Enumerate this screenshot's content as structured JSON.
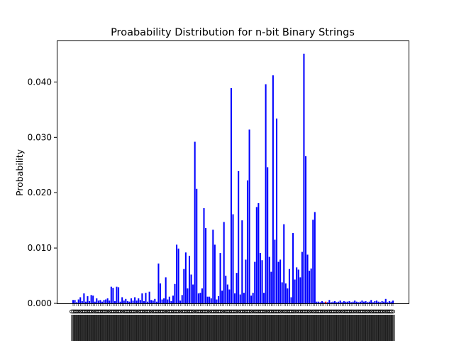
{
  "chart_data": {
    "type": "bar",
    "title": "Proabability Distribution for n-bit Binary Strings",
    "xlabel": "",
    "ylabel": "Probability",
    "ylim": [
      0,
      0.0475
    ],
    "yticks": [
      0.0,
      0.01,
      0.02,
      0.03,
      0.04
    ],
    "ytick_labels": [
      "0.000",
      "0.010",
      "0.020",
      "0.030",
      "0.040"
    ],
    "grid": false,
    "bar_color": "#0000ff",
    "highlight_color": "#ff0000",
    "highlight_index": 139,
    "xtick_labels_note": "x tick labels are densely overlapping rotated binary strings starting with 0",
    "values": [
      0.0006,
      0.0006,
      0.0002,
      0.0007,
      0.0011,
      0.0004,
      0.0018,
      0.0003,
      0.0013,
      0.0004,
      0.0015,
      0.0014,
      0.0003,
      0.0009,
      0.0005,
      0.0006,
      0.0003,
      0.0006,
      0.0007,
      0.0009,
      0.0005,
      0.003,
      0.0028,
      0.0004,
      0.003,
      0.0029,
      0.0003,
      0.0011,
      0.0005,
      0.0008,
      0.0004,
      0.0003,
      0.0009,
      0.0005,
      0.0011,
      0.0005,
      0.0009,
      0.0006,
      0.0018,
      0.0004,
      0.0019,
      0.0003,
      0.0021,
      0.0006,
      0.0005,
      0.0008,
      0.0003,
      0.0072,
      0.0036,
      0.0007,
      0.0009,
      0.0047,
      0.0007,
      0.0012,
      0.0004,
      0.0014,
      0.0035,
      0.0106,
      0.0099,
      0.0005,
      0.0015,
      0.0062,
      0.0092,
      0.0027,
      0.0086,
      0.0052,
      0.0034,
      0.0292,
      0.0207,
      0.0018,
      0.0019,
      0.0027,
      0.0172,
      0.0136,
      0.0012,
      0.0012,
      0.0009,
      0.0133,
      0.0106,
      0.0007,
      0.0013,
      0.0091,
      0.0023,
      0.0147,
      0.005,
      0.0034,
      0.0025,
      0.0389,
      0.0161,
      0.0018,
      0.0055,
      0.0239,
      0.0016,
      0.015,
      0.0019,
      0.0079,
      0.0222,
      0.0314,
      0.0014,
      0.0019,
      0.0075,
      0.0174,
      0.0181,
      0.0091,
      0.0078,
      0.0019,
      0.0396,
      0.0246,
      0.0084,
      0.0057,
      0.0412,
      0.0115,
      0.0334,
      0.0075,
      0.0079,
      0.0038,
      0.0143,
      0.0036,
      0.0027,
      0.0062,
      0.0011,
      0.0127,
      0.0043,
      0.0065,
      0.0061,
      0.0047,
      0.0093,
      0.0451,
      0.0266,
      0.0088,
      0.0059,
      0.0063,
      0.0151,
      0.0165,
      0.0003,
      0.0003,
      0.0002,
      0.0004,
      0.0002,
      0.0003,
      0.0002,
      0.0006,
      0.0002,
      0.0003,
      0.0004,
      0.0002,
      0.0003,
      0.0005,
      0.0002,
      0.0004,
      0.0003,
      0.0003,
      0.0004,
      0.0002,
      0.0003,
      0.0005,
      0.0003,
      0.0002,
      0.0003,
      0.0005,
      0.0003,
      0.0004,
      0.0002,
      0.0003,
      0.0006,
      0.0002,
      0.0004,
      0.0005,
      0.0003,
      0.0002,
      0.0004,
      0.0003,
      0.0008,
      0.0002,
      0.0004,
      0.0003,
      0.0005
    ]
  }
}
